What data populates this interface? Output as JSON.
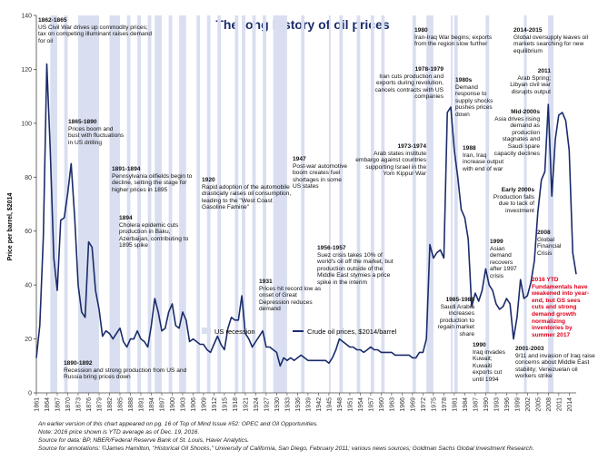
{
  "chart_data": {
    "type": "line",
    "title": "The long history of oil prices",
    "ylabel": "Price per barrel, $2014",
    "xlabel": "",
    "ylim": [
      0,
      140
    ],
    "xlim": [
      1861,
      2016
    ],
    "yticks": [
      0,
      20,
      40,
      60,
      80,
      100,
      120,
      140
    ],
    "xtick_labels": [
      "1861",
      "1864",
      "1867",
      "1870",
      "1873",
      "1876",
      "1879",
      "1882",
      "1885",
      "1888",
      "1891",
      "1894",
      "1897",
      "1900",
      "1903",
      "1906",
      "1909",
      "1912",
      "1915",
      "1918",
      "1921",
      "1924",
      "1927",
      "1930",
      "1933",
      "1936",
      "1939",
      "1942",
      "1945",
      "1948",
      "1951",
      "1954",
      "1957",
      "1960",
      "1963",
      "1966",
      "1969",
      "1972",
      "1975",
      "1978",
      "1981",
      "1984",
      "1987",
      "1990",
      "1993",
      "1996",
      "1999",
      "2002",
      "2005",
      "2008",
      "2011",
      "2014"
    ],
    "legend": [
      "US recession",
      "Crude oil prices, $2014/barrel"
    ],
    "series": [
      {
        "name": "Crude oil prices, $2014/barrel",
        "color": "#1a2c6b",
        "x": [
          1861,
          1862,
          1863,
          1864,
          1865,
          1866,
          1867,
          1868,
          1869,
          1870,
          1871,
          1872,
          1873,
          1874,
          1875,
          1876,
          1877,
          1878,
          1879,
          1880,
          1881,
          1882,
          1883,
          1884,
          1885,
          1886,
          1887,
          1888,
          1889,
          1890,
          1891,
          1892,
          1893,
          1894,
          1895,
          1896,
          1897,
          1898,
          1899,
          1900,
          1901,
          1902,
          1903,
          1904,
          1905,
          1906,
          1907,
          1908,
          1909,
          1910,
          1911,
          1912,
          1913,
          1914,
          1915,
          1916,
          1917,
          1918,
          1919,
          1920,
          1921,
          1922,
          1923,
          1924,
          1925,
          1926,
          1927,
          1928,
          1929,
          1930,
          1931,
          1932,
          1933,
          1934,
          1935,
          1936,
          1937,
          1938,
          1939,
          1940,
          1941,
          1942,
          1943,
          1944,
          1945,
          1946,
          1947,
          1948,
          1949,
          1950,
          1951,
          1952,
          1953,
          1954,
          1955,
          1956,
          1957,
          1958,
          1959,
          1960,
          1961,
          1962,
          1963,
          1964,
          1965,
          1966,
          1967,
          1968,
          1969,
          1970,
          1971,
          1972,
          1973,
          1974,
          1975,
          1976,
          1977,
          1978,
          1979,
          1980,
          1981,
          1982,
          1983,
          1984,
          1985,
          1986,
          1987,
          1988,
          1989,
          1990,
          1991,
          1992,
          1993,
          1994,
          1995,
          1996,
          1997,
          1998,
          1999,
          2000,
          2001,
          2002,
          2003,
          2004,
          2005,
          2006,
          2007,
          2008,
          2009,
          2010,
          2011,
          2012,
          2013,
          2014,
          2015,
          2016
        ],
        "values": [
          13,
          25,
          58,
          122,
          90,
          50,
          38,
          64,
          65,
          74,
          85,
          65,
          40,
          30,
          28,
          56,
          54,
          38,
          31,
          21,
          23,
          22,
          20,
          22,
          24,
          19,
          17,
          20,
          20,
          23,
          20,
          19,
          17,
          25,
          35,
          30,
          23,
          24,
          30,
          33,
          25,
          24,
          30,
          27,
          19,
          20,
          19,
          18,
          18,
          16,
          15,
          18,
          21,
          18,
          16,
          24,
          28,
          27,
          27,
          36,
          22,
          20,
          17,
          19,
          21,
          23,
          17,
          17,
          16,
          15,
          10,
          13,
          12,
          13,
          12,
          13,
          14,
          13,
          12,
          12,
          12,
          12,
          12,
          12,
          11,
          13,
          16,
          20,
          19,
          18,
          17,
          17,
          16,
          16,
          15,
          16,
          17,
          16,
          16,
          15,
          15,
          15,
          15,
          14,
          14,
          14,
          14,
          14,
          13,
          13,
          15,
          15,
          20,
          55,
          50,
          52,
          53,
          50,
          104,
          106,
          90,
          80,
          68,
          65,
          57,
          32,
          37,
          34,
          38,
          46,
          40,
          38,
          33,
          31,
          32,
          35,
          33,
          20,
          28,
          42,
          35,
          36,
          41,
          49,
          67,
          79,
          82,
          107,
          73,
          94,
          103,
          104,
          101,
          90,
          52,
          44
        ]
      }
    ],
    "recessions": [
      [
        1865,
        1867
      ],
      [
        1869,
        1870
      ],
      [
        1873,
        1879
      ],
      [
        1882,
        1885
      ],
      [
        1887,
        1888
      ],
      [
        1890,
        1891
      ],
      [
        1893,
        1894
      ],
      [
        1895,
        1897
      ],
      [
        1899,
        1900
      ],
      [
        1902,
        1904
      ],
      [
        1907,
        1908
      ],
      [
        1910,
        1911
      ],
      [
        1913,
        1914
      ],
      [
        1918,
        1919
      ],
      [
        1920,
        1921
      ],
      [
        1923,
        1924
      ],
      [
        1926,
        1927
      ],
      [
        1929,
        1933
      ],
      [
        1937,
        1938
      ],
      [
        1945,
        1945.5
      ],
      [
        1948,
        1949
      ],
      [
        1953,
        1954
      ],
      [
        1957,
        1958
      ],
      [
        1960,
        1961
      ],
      [
        1969,
        1970
      ],
      [
        1973,
        1975
      ],
      [
        1980,
        1980.5
      ],
      [
        1981,
        1982
      ],
      [
        1990,
        1991
      ],
      [
        2001,
        2001.8
      ],
      [
        2007.9,
        2009.5
      ]
    ],
    "annotations": [
      {
        "head": "1862-1865",
        "text": "US Civil War drives up commodity prices; tax on competing illuminant raises demand for oil"
      },
      {
        "head": "1865-1890",
        "text": "Prices boom and bust with fluctuations in US drilling"
      },
      {
        "head": "1891-1894",
        "text": "Pennsylvania oilfields begin to decline, setting the stage for higher prices in 1895"
      },
      {
        "head": "1894",
        "text": "Cholera epidemic cuts production in Baku, Azerbaijan, contributing to 1895 spike"
      },
      {
        "head": "1890-1892",
        "text": "Recession and strong production from US and Russia bring prices down"
      },
      {
        "head": "1920",
        "text": "Rapid adoption of the automobile drastically raises oil consumption, leading to the \"West Coast Gasoline Famine\""
      },
      {
        "head": "1931",
        "text": "Prices hit record low as onset of Great Depression reduces demand"
      },
      {
        "head": "1947",
        "text": "Post-war automotive boom creates fuel shortages in some US states"
      },
      {
        "head": "1956-1957",
        "text": "Suez crisis takes 10% of world's oil off the market, but production outside of the Middle East stymies a price spike in the interim"
      },
      {
        "head": "1973-1974",
        "text": "Arab states institute embargo against countries supporting Israel in the Yom Kippur War"
      },
      {
        "head": "1978-1979",
        "text": "Iran cuts production and exports during revolution, cancels contracts with US companies"
      },
      {
        "head": "1980",
        "text": "Iran-Iraq War begins; exports from the region slow further"
      },
      {
        "head": "1980s",
        "text": "Demand response to supply shocks pushes prices down"
      },
      {
        "head": "1988",
        "text": "Iran, Iraq increase output with end of war"
      },
      {
        "head": "1985-1986",
        "text": "Saudi Arabia increases production to regain market share"
      },
      {
        "head": "1990",
        "text": "Iraq invades Kuwait; Kuwaiti exports cut until 1994"
      },
      {
        "head": "1999",
        "text": "Asian demand recovers after 1997 crisis"
      },
      {
        "head": "Early 2000s",
        "text": "Production falls due to lack of investment"
      },
      {
        "head": "Mid-2000s",
        "text": "Asia drives rising demand as production stagnates and Saudi spare capacity declines"
      },
      {
        "head": "2011",
        "text": "Arab Spring; Libyan civil war disrupts output"
      },
      {
        "head": "2014-2015",
        "text": "Global oversupply leaves oil markets searching for new equilibrium"
      },
      {
        "head": "2008",
        "text": "Global Financial Crisis"
      },
      {
        "head": "2016 YTD",
        "text": "Fundamentals have weakened into year-end, but GS sees cuts and strong demand growth normalizing inventories by summer 2017"
      },
      {
        "head": "2001-2003",
        "text": "9/11 and invasion of Iraq raise concerns about Middle East stability; Venezuelan oil workers strike"
      }
    ]
  },
  "footnotes": [
    "An earlier version of this chart appeared on pg. 16 of Top of Mind Issue #52: OPEC and Oil Opportunities.",
    "Note: 2016 price shown is YTD average as of Dec. 19, 2016.",
    "Source for data: BP, NBER/Federal Reserve Bank of St. Louis, Haver Analytics.",
    "Source for annotations: ©James Hamilton, \"Historical Oil Shocks,\" University of California, San Diego, February 2011; various news sources; Goldman Sachs Global Investment Research."
  ],
  "colors": {
    "line": "#1a2c6b",
    "recession": "#d9dff0",
    "title": "#1a2c6b",
    "highlight": "#e0001b"
  }
}
